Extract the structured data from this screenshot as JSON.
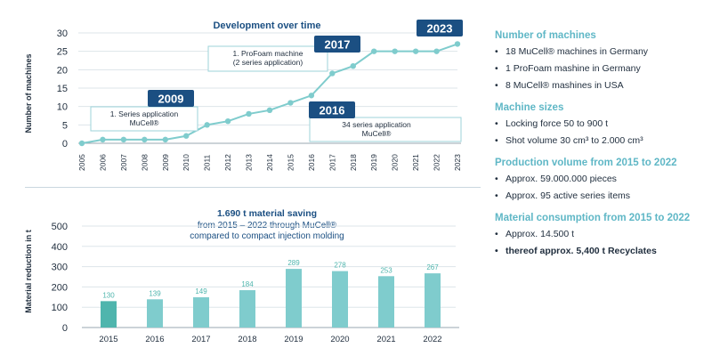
{
  "chart_data": [
    {
      "type": "line",
      "title": "Development over time",
      "ylabel": "Number of machines",
      "xlabel": "",
      "ylim": [
        0,
        30
      ],
      "yticks": [
        0,
        5,
        10,
        15,
        20,
        25,
        30
      ],
      "x": [
        "2005",
        "2006",
        "2007",
        "2008",
        "2009",
        "2010",
        "2011",
        "2012",
        "2013",
        "2014",
        "2015",
        "2016",
        "2017",
        "2018",
        "2019",
        "2020",
        "2021",
        "2022",
        "2023"
      ],
      "values": [
        0,
        1,
        1,
        1,
        1,
        2,
        5,
        6,
        8,
        9,
        11,
        13,
        19,
        21,
        25,
        25,
        25,
        25,
        27
      ],
      "color": "#7fcccd",
      "milestones": [
        {
          "year": "2009",
          "label": "2009",
          "note_lines": [
            "1. Series application",
            "MuCell®"
          ]
        },
        {
          "year": "2016",
          "label": "2016",
          "note_lines": [
            "34 series application",
            "MuCell®"
          ]
        },
        {
          "year": "2017",
          "label": "2017",
          "note_lines": [
            "1. ProFoam machine",
            "(2 series application)"
          ]
        },
        {
          "year": "2023",
          "label": "2023",
          "note_lines": []
        }
      ]
    },
    {
      "type": "bar",
      "title": "1.690 t material saving",
      "subtitle_lines": [
        "from 2015 – 2022 through MuCell®",
        "compared to compact injection molding"
      ],
      "ylabel": "Material reduction in t",
      "xlabel": "",
      "ylim": [
        0,
        500
      ],
      "yticks": [
        0,
        100,
        200,
        300,
        400,
        500
      ],
      "categories": [
        "2015",
        "2016",
        "2017",
        "2018",
        "2019",
        "2020",
        "2021",
        "2022"
      ],
      "values": [
        130,
        139,
        149,
        184,
        289,
        278,
        253,
        267
      ],
      "colors": [
        "#4fb5ad",
        "#7fcccd"
      ]
    }
  ],
  "panel": {
    "sections": [
      {
        "title": "Number of machines",
        "items": [
          {
            "text": "18 MuCell® machines in Germany"
          },
          {
            "text": "1 ProFoam mashine in Germany"
          },
          {
            "text": "8 MuCell® mashines in USA"
          }
        ]
      },
      {
        "title": "Machine sizes",
        "items": [
          {
            "text": "Locking force 50 to 900 t"
          },
          {
            "text": "Shot volume 30 cm³ to 2.000 cm³"
          }
        ]
      },
      {
        "title": "Production volume from 2015 to 2022",
        "items": [
          {
            "text": "Approx. 59.000.000 pieces"
          },
          {
            "text": "Approx. 95 active series items"
          }
        ]
      },
      {
        "title": "Material consumption from 2015 to 2022",
        "items": [
          {
            "text": "Approx. 14.500 t"
          },
          {
            "text": "thereof approx. 5,400 t Recyclates",
            "bold": true
          }
        ]
      }
    ]
  },
  "colors": {
    "navy": "#1b4f82",
    "accent": "#5fb7c6",
    "text": "#1f2d3d",
    "grid": "#dde5ea",
    "axis": "#9aa7b1"
  }
}
